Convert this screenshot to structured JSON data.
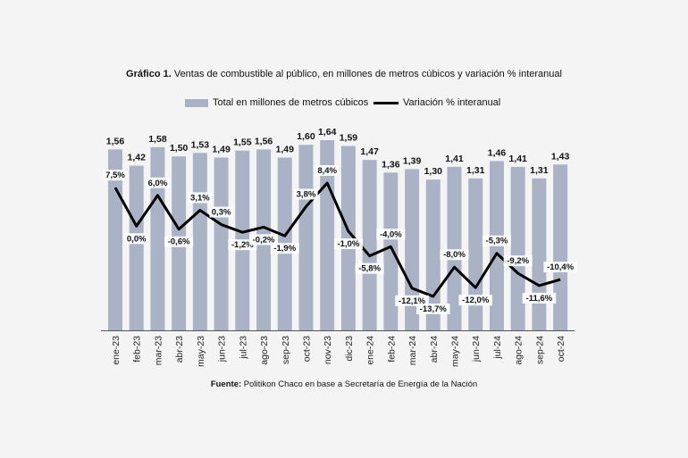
{
  "chart_data": {
    "type": "bar",
    "title_bold": "Gráfico 1.",
    "title_rest": " Ventas de combustible al público, en millones de metros cúbicos y variación % interanual",
    "legend": [
      "Total en millones de metros cúbicos",
      "Variación % interanual"
    ],
    "categories": [
      "ene-23",
      "feb-23",
      "mar-23",
      "abr-23",
      "may-23",
      "jun-23",
      "jul-23",
      "ago-23",
      "sep-23",
      "oct-23",
      "nov-23",
      "dic-23",
      "ene-24",
      "feb-24",
      "mar-24",
      "abr-24",
      "may-24",
      "jun-24",
      "jul-24",
      "ago-24",
      "sep-24",
      "oct-24"
    ],
    "series": [
      {
        "name": "Total en millones de metros cúbicos",
        "type": "bar",
        "values": [
          1.56,
          1.42,
          1.58,
          1.5,
          1.53,
          1.49,
          1.55,
          1.56,
          1.49,
          1.6,
          1.64,
          1.59,
          1.47,
          1.36,
          1.39,
          1.3,
          1.41,
          1.31,
          1.46,
          1.41,
          1.31,
          1.43
        ],
        "labels": [
          "1,56",
          "1,42",
          "1,58",
          "1,50",
          "1,53",
          "1,49",
          "1,55",
          "1,56",
          "1,49",
          "1,60",
          "1,64",
          "1,59",
          "1,47",
          "1,36",
          "1,39",
          "1,30",
          "1,41",
          "1,31",
          "1,46",
          "1,41",
          "1,31",
          "1,43"
        ],
        "color": "#aab3c6"
      },
      {
        "name": "Variación % interanual",
        "type": "line",
        "values": [
          7.5,
          0.0,
          6.0,
          -0.6,
          3.1,
          0.3,
          -1.2,
          -0.2,
          -1.9,
          3.8,
          8.4,
          -1.0,
          -5.8,
          -4.0,
          -12.1,
          -13.7,
          -8.0,
          -12.0,
          -5.3,
          -9.2,
          -11.6,
          -10.4
        ],
        "labels": [
          "7,5%",
          "0,0%",
          "6,0%",
          "-0,6%",
          "3,1%",
          "0,3%",
          "-1,2%",
          "-0,2%",
          "-1,9%",
          "3,8%",
          "8,4%",
          "-1,0%",
          "-5,8%",
          "-4,0%",
          "-12,1%",
          "-13,7%",
          "-8,0%",
          "-12,0%",
          "-5,3%",
          "-9,2%",
          "-11,6%",
          "-10,4%"
        ],
        "color": "#000000"
      }
    ],
    "bar_axis_range": [
      0,
      1.64
    ],
    "line_axis_range": [
      -13.7,
      8.4
    ],
    "source_bold": "Fuente:",
    "source_rest": " Politikon Chaco en base a Secretaría de Energía de la Nación"
  }
}
